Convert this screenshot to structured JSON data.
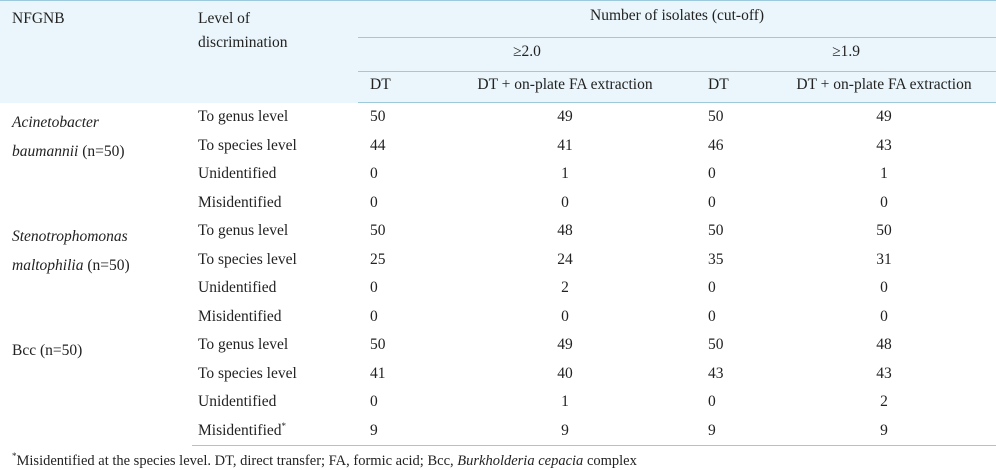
{
  "header": {
    "col_nfgnb": "NFGNB",
    "col_level_line1": "Level of",
    "col_level_line2": "discrimination",
    "span_title": "Number of isolates (cut-off)",
    "threshold_1": "≥2.0",
    "threshold_2": "≥1.9",
    "sub_dt": "DT",
    "sub_fa": "DT + on-plate FA extraction"
  },
  "groups": [
    {
      "name_italic_1": "Acinetobacter",
      "name_italic_2": "baumannii",
      "name_suffix": " (n=50)",
      "rows": [
        {
          "level": "To genus level",
          "dt20": "50",
          "fa20": "49",
          "dt19": "50",
          "fa19": "49"
        },
        {
          "level": "To species level",
          "dt20": "44",
          "fa20": "41",
          "dt19": "46",
          "fa19": "43"
        },
        {
          "level": "Unidentified",
          "dt20": "0",
          "fa20": "1",
          "dt19": "0",
          "fa19": "1"
        },
        {
          "level": "Misidentified",
          "dt20": "0",
          "fa20": "0",
          "dt19": "0",
          "fa19": "0"
        }
      ]
    },
    {
      "name_italic_1": "Stenotrophomonas",
      "name_italic_2": "maltophilia",
      "name_suffix": " (n=50)",
      "rows": [
        {
          "level": "To genus level",
          "dt20": "50",
          "fa20": "48",
          "dt19": "50",
          "fa19": "50"
        },
        {
          "level": "To species level",
          "dt20": "25",
          "fa20": "24",
          "dt19": "35",
          "fa19": "31"
        },
        {
          "level": "Unidentified",
          "dt20": "0",
          "fa20": "2",
          "dt19": "0",
          "fa19": "0"
        },
        {
          "level": "Misidentified",
          "dt20": "0",
          "fa20": "0",
          "dt19": "0",
          "fa19": "0"
        }
      ]
    },
    {
      "name_plain": "Bcc (n=50)",
      "rows": [
        {
          "level": "To genus level",
          "dt20": "50",
          "fa20": "49",
          "dt19": "50",
          "fa19": "48"
        },
        {
          "level": "To species level",
          "dt20": "41",
          "fa20": "40",
          "dt19": "43",
          "fa19": "43"
        },
        {
          "level": "Unidentified",
          "dt20": "0",
          "fa20": "1",
          "dt19": "0",
          "fa19": "2"
        },
        {
          "level": "Misidentified",
          "level_sup": "*",
          "dt20": "9",
          "fa20": "9",
          "dt19": "9",
          "fa19": "9"
        }
      ]
    }
  ],
  "footnote": {
    "mark": "*",
    "text_before": "Misidentified at the species level. DT, direct transfer; FA, formic acid; Bcc, ",
    "italic": "Burkholderia cepacia",
    "text_after": " complex"
  }
}
